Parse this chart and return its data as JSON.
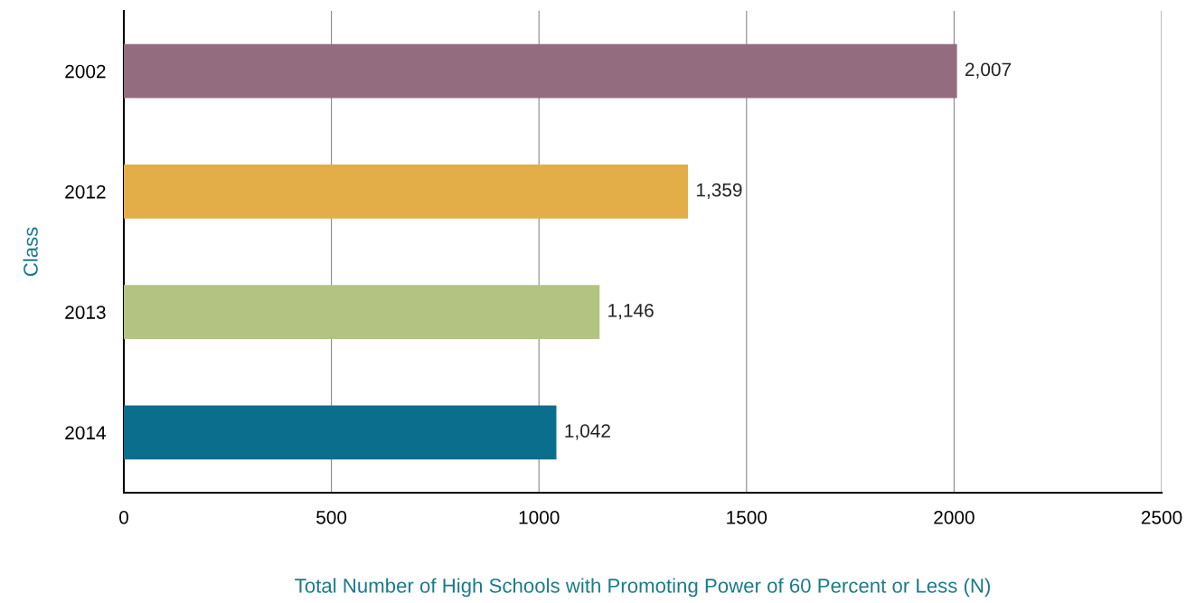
{
  "chart_data": {
    "type": "bar",
    "orientation": "horizontal",
    "xlabel": "Total Number of High Schools with Promoting Power of 60 Percent or Less (N)",
    "ylabel": "Class",
    "categories": [
      "2002",
      "2012",
      "2013",
      "2014"
    ],
    "values": [
      2007,
      1359,
      1146,
      1042
    ],
    "colors": [
      "#946c80",
      "#e3ad47",
      "#b3c382",
      "#0b6e8c"
    ],
    "value_labels": [
      "2,007",
      "1,359",
      "1,146",
      "1,042"
    ],
    "xlim": [
      0,
      2500
    ],
    "xticks": [
      0,
      500,
      1000,
      1500,
      2000,
      2500
    ],
    "grid": "x"
  }
}
